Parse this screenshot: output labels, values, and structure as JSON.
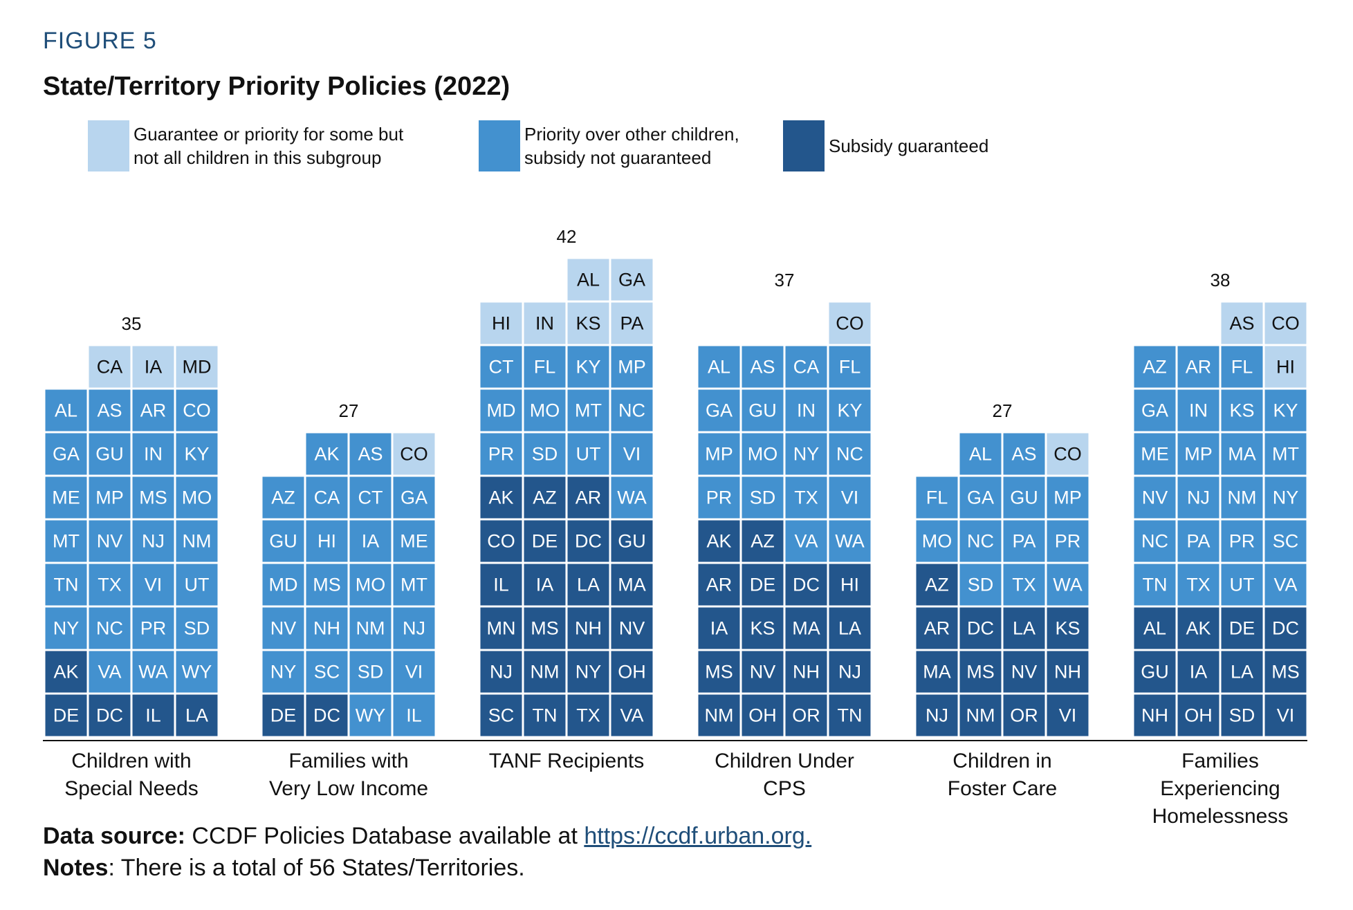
{
  "figure_label": "FIGURE 5",
  "title": "State/Territory Priority Policies (2022)",
  "legend": [
    {
      "key": "some",
      "lines": [
        "Guarantee or priority for some but",
        "not all children in this subgroup"
      ],
      "color": "#b8d5ee"
    },
    {
      "key": "priority",
      "lines": [
        "Priority over other children,",
        "subsidy not guaranteed"
      ],
      "color": "#4391cf"
    },
    {
      "key": "guaranteed",
      "lines": [
        "Subsidy guaranteed"
      ],
      "color": "#23568c"
    }
  ],
  "chart_data": {
    "type": "stacked waffle bar",
    "title": "State/Territory Priority Policies (2022)",
    "categories": [
      {
        "name": "Children with Special Needs",
        "label_lines": [
          "Children with",
          "Special Needs"
        ],
        "total": 35,
        "guaranteed": [
          "DE",
          "DC",
          "IL",
          "LA",
          "AK"
        ],
        "priority": [
          "VA",
          "WA",
          "WY",
          "NY",
          "NC",
          "PR",
          "SD",
          "TN",
          "TX",
          "VI",
          "UT",
          "MT",
          "NV",
          "NJ",
          "NM",
          "ME",
          "MP",
          "MS",
          "MO",
          "GA",
          "GU",
          "IN",
          "KY",
          "AL",
          "AS",
          "AR",
          "CO"
        ],
        "some": [
          "CA",
          "IA",
          "MD"
        ]
      },
      {
        "name": "Families with Very Low Income",
        "label_lines": [
          "Families with",
          "Very Low Income"
        ],
        "total": 27,
        "guaranteed": [
          "DE",
          "DC"
        ],
        "priority": [
          "WY",
          "IL",
          "NY",
          "SC",
          "SD",
          "VI",
          "NV",
          "NH",
          "NM",
          "NJ",
          "MD",
          "MS",
          "MO",
          "MT",
          "GU",
          "HI",
          "IA",
          "ME",
          "AZ",
          "CA",
          "CT",
          "GA",
          "AK",
          "AS"
        ],
        "some": [
          "CO"
        ]
      },
      {
        "name": "TANF Recipients",
        "label_lines": [
          "TANF Recipients"
        ],
        "total": 42,
        "guaranteed": [
          "SC",
          "TN",
          "TX",
          "VA",
          "NJ",
          "NM",
          "NY",
          "OH",
          "MN",
          "MS",
          "NH",
          "NV",
          "IL",
          "IA",
          "LA",
          "MA",
          "CO",
          "DE",
          "DC",
          "GU",
          "AK",
          "AZ",
          "AR"
        ],
        "priority": [
          "WA",
          "PR",
          "SD",
          "UT",
          "VI",
          "MD",
          "MO",
          "MT",
          "NC",
          "CT",
          "FL",
          "KY",
          "MP"
        ],
        "some": [
          "HI",
          "IN",
          "KS",
          "PA",
          "AL",
          "GA"
        ]
      },
      {
        "name": "Children Under CPS",
        "label_lines": [
          "Children Under",
          "CPS"
        ],
        "total": 37,
        "guaranteed": [
          "NM",
          "OH",
          "OR",
          "TN",
          "MS",
          "NV",
          "NH",
          "NJ",
          "IA",
          "KS",
          "MA",
          "LA",
          "AR",
          "DE",
          "DC",
          "HI",
          "AK",
          "AZ"
        ],
        "priority": [
          "VA",
          "WA",
          "PR",
          "SD",
          "TX",
          "VI",
          "MP",
          "MO",
          "NY",
          "NC",
          "GA",
          "GU",
          "IN",
          "KY",
          "AL",
          "AS",
          "CA",
          "FL"
        ],
        "some": [
          "CO"
        ]
      },
      {
        "name": "Children in Foster Care",
        "label_lines": [
          "Children in",
          "Foster Care"
        ],
        "total": 27,
        "guaranteed": [
          "NJ",
          "NM",
          "OR",
          "VI",
          "MA",
          "MS",
          "NV",
          "NH",
          "AR",
          "DC",
          "LA",
          "KS",
          "AZ"
        ],
        "priority": [
          "SD",
          "TX",
          "WA",
          "MO",
          "NC",
          "PA",
          "PR",
          "FL",
          "GA",
          "GU",
          "MP",
          "AL",
          "AS"
        ],
        "some": [
          "CO"
        ]
      },
      {
        "name": "Families Experiencing Homelessness",
        "label_lines": [
          "Families",
          "Experiencing",
          "Homelessness"
        ],
        "total": 38,
        "guaranteed": [
          "NH",
          "OH",
          "SD",
          "VI",
          "GU",
          "IA",
          "LA",
          "MS",
          "AL",
          "AK",
          "DE",
          "DC"
        ],
        "priority": [
          "TN",
          "TX",
          "UT",
          "VA",
          "NC",
          "PA",
          "PR",
          "SC",
          "NV",
          "NJ",
          "NM",
          "NY",
          "ME",
          "MP",
          "MA",
          "MT",
          "GA",
          "IN",
          "KS",
          "KY",
          "AZ",
          "AR",
          "FL"
        ],
        "some": [
          "HI",
          "AS",
          "CO"
        ]
      }
    ]
  },
  "footer": {
    "source_label": "Data source:",
    "source_text": " CCDF Policies Database available at ",
    "source_link": "https://ccdf.urban.org.",
    "notes_label": "Notes",
    "notes_text": ": There is a total of 56 States/Territories."
  }
}
